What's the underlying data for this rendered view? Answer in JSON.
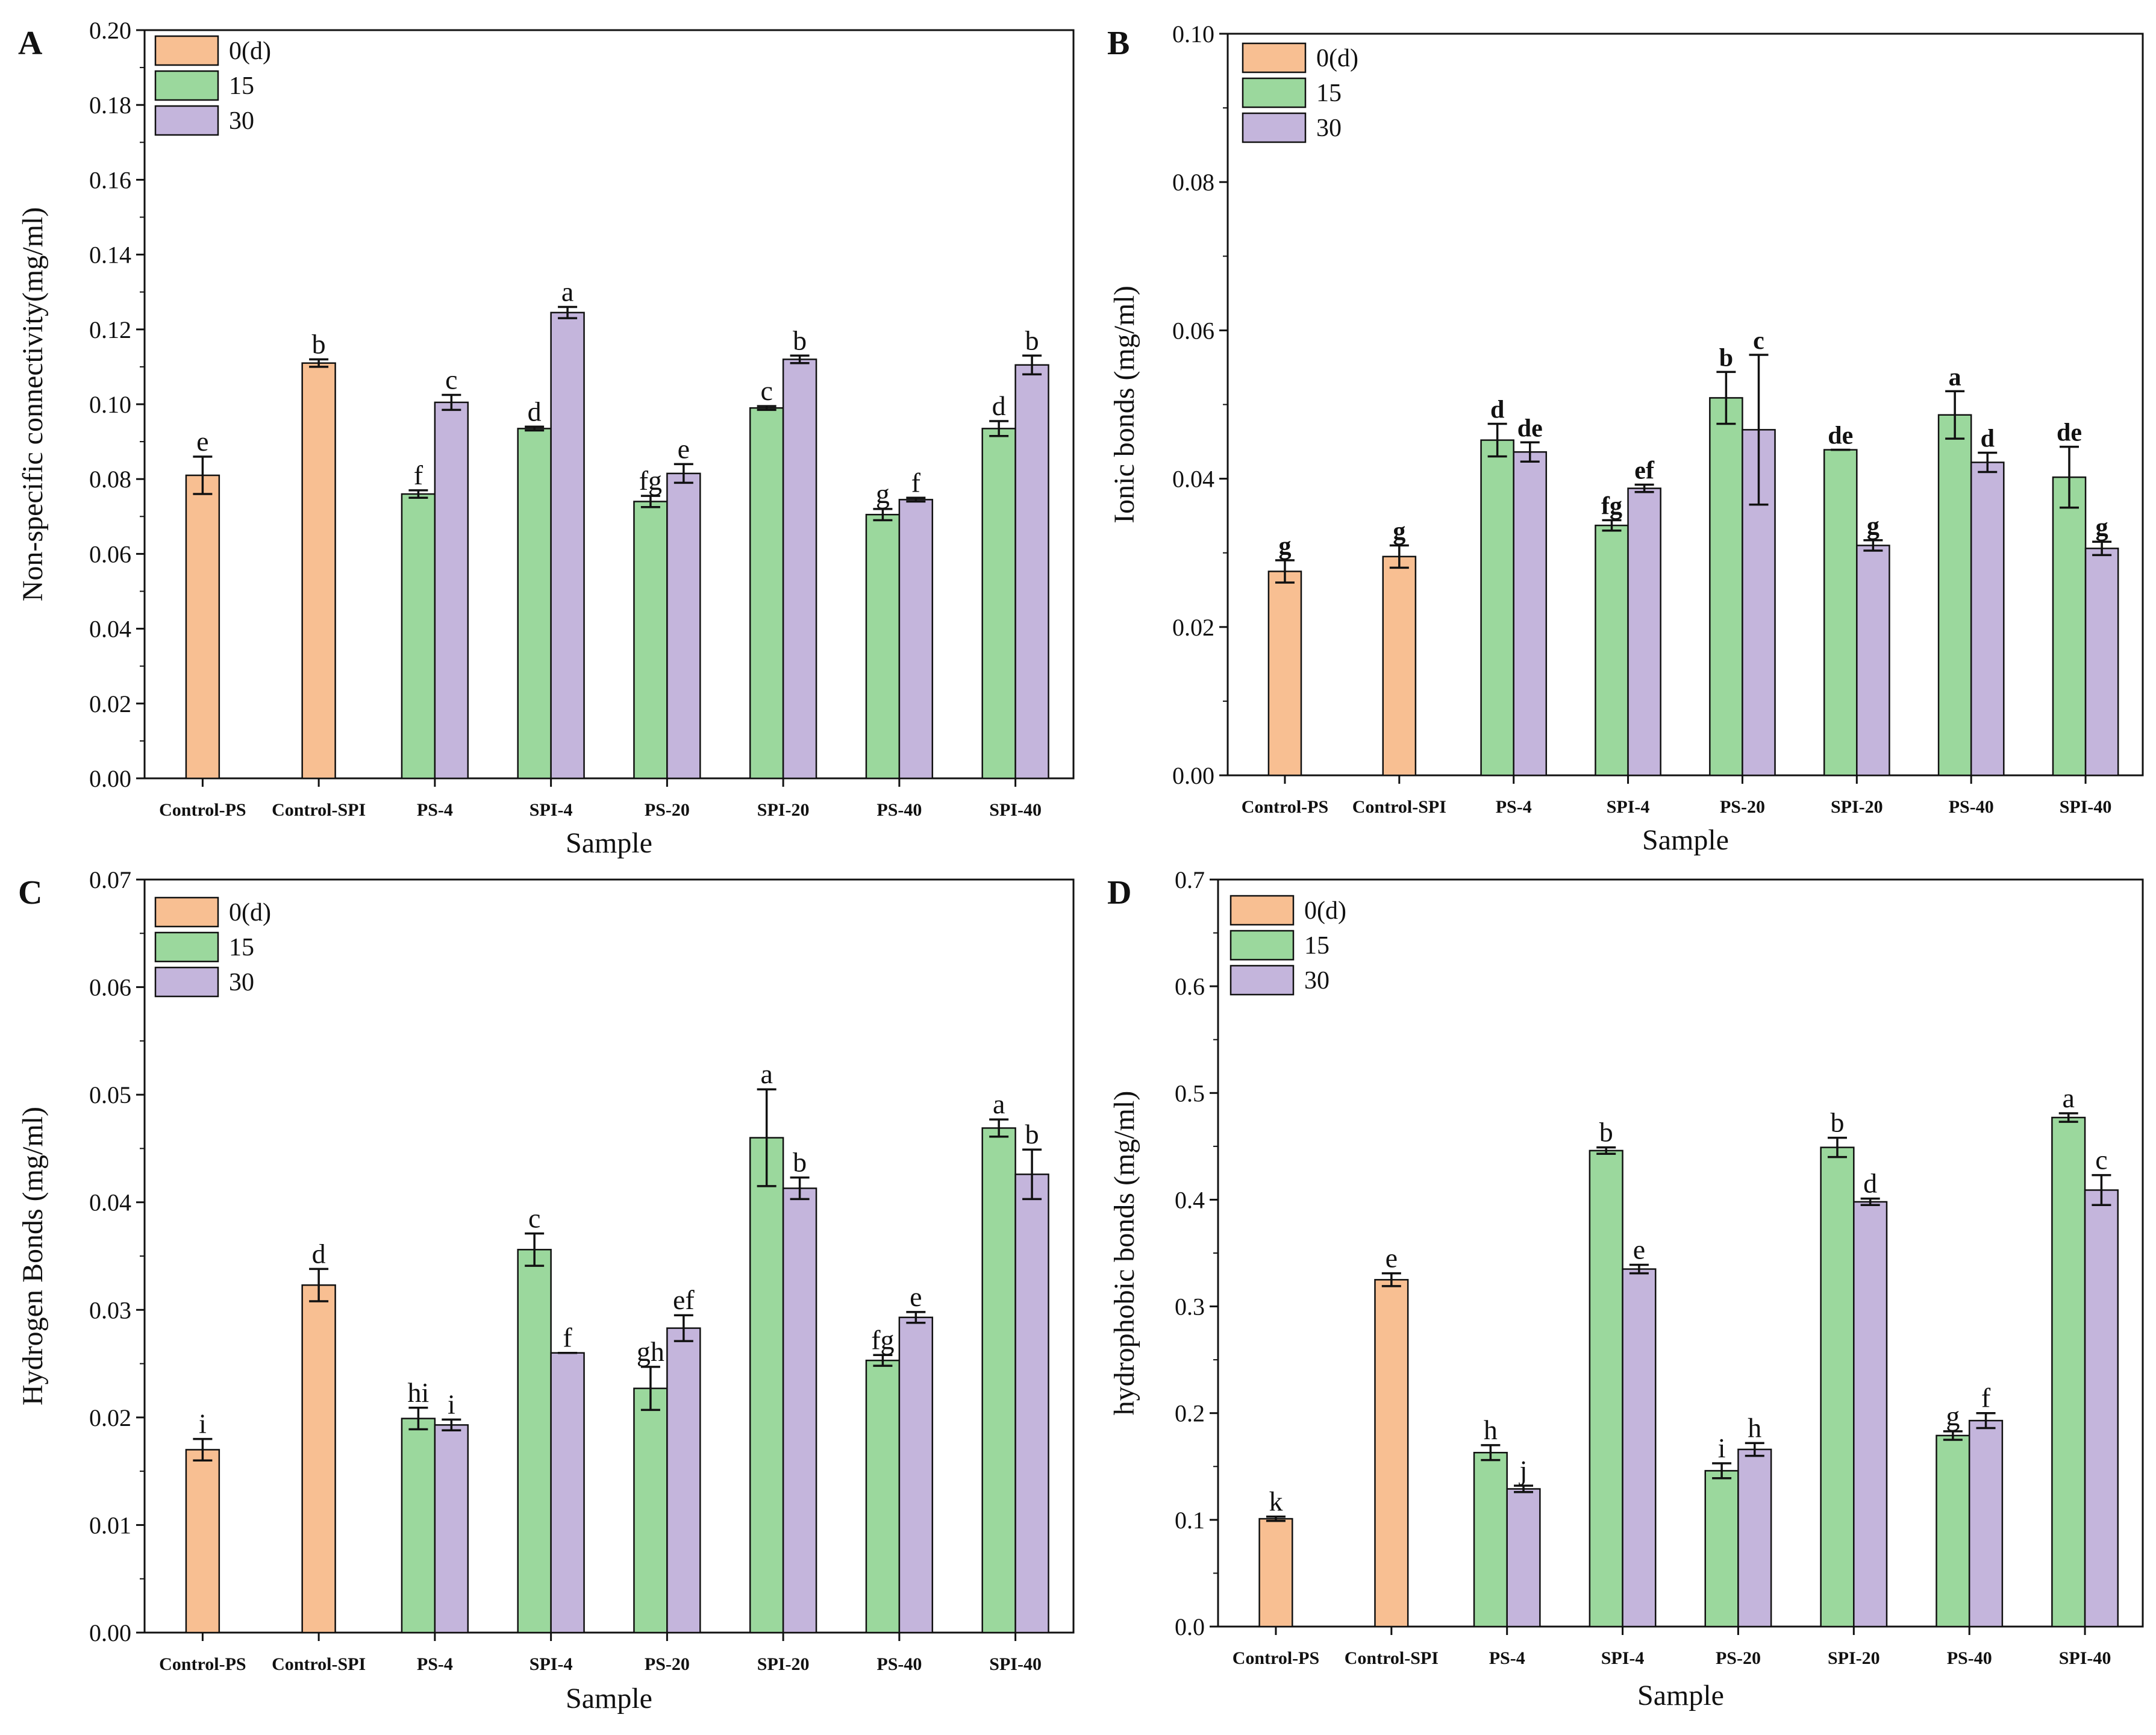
{
  "figure": {
    "colors": {
      "day0": "#F8BF92",
      "day15": "#9BD89D",
      "day30": "#C4B5DC",
      "stroke": "#111111"
    },
    "legend_labels": [
      "0(d)",
      "15",
      "30"
    ]
  },
  "chart_data": [
    {
      "panel": "A",
      "type": "bar",
      "title": "",
      "xlabel": "Sample",
      "ylabel": "Non-specific connectivity(mg/ml)",
      "ylim": [
        0,
        0.2
      ],
      "yticks": [
        "0.00",
        "0.02",
        "0.04",
        "0.06",
        "0.08",
        "0.10",
        "0.12",
        "0.14",
        "0.16",
        "0.18",
        "0.20"
      ],
      "categories": [
        "Control-PS",
        "Control-SPI",
        "PS-4",
        "SPI-4",
        "PS-20",
        "SPI-20",
        "PS-40",
        "SPI-40"
      ],
      "legend_position": "top-left",
      "bold_sig": false,
      "series": [
        {
          "name": "0(d)",
          "values": [
            0.081,
            0.111,
            null,
            null,
            null,
            null,
            null,
            null
          ],
          "errors": [
            0.005,
            0.001,
            null,
            null,
            null,
            null,
            null,
            null
          ],
          "sig": [
            "e",
            "b",
            "",
            "",
            "",
            "",
            "",
            ""
          ]
        },
        {
          "name": "15",
          "values": [
            null,
            null,
            0.076,
            0.0935,
            0.074,
            0.099,
            0.0705,
            0.0935
          ],
          "errors": [
            null,
            null,
            0.001,
            0.0005,
            0.0015,
            0.0005,
            0.0015,
            0.002
          ],
          "sig": [
            "",
            "",
            "f",
            "d",
            "fg",
            "c",
            "g",
            "d"
          ]
        },
        {
          "name": "30",
          "values": [
            null,
            null,
            0.1005,
            0.1245,
            0.0815,
            0.112,
            0.0745,
            0.1105
          ],
          "errors": [
            null,
            null,
            0.002,
            0.0015,
            0.0025,
            0.001,
            0.0005,
            0.0025
          ],
          "sig": [
            "",
            "",
            "c",
            "a",
            "e",
            "b",
            "f",
            "b"
          ]
        }
      ]
    },
    {
      "panel": "B",
      "type": "bar",
      "title": "",
      "xlabel": "Sample",
      "ylabel": "Ionic bonds (mg/ml)",
      "ylim": [
        0,
        0.1
      ],
      "yticks": [
        "0.00",
        "0.02",
        "0.04",
        "0.06",
        "0.08",
        "0.10"
      ],
      "categories": [
        "Control-PS",
        "Control-SPI",
        "PS-4",
        "SPI-4",
        "PS-20",
        "SPI-20",
        "PS-40",
        "SPI-40"
      ],
      "legend_position": "top-left",
      "bold_sig": true,
      "series": [
        {
          "name": "0(d)",
          "values": [
            0.0275,
            0.0295,
            null,
            null,
            null,
            null,
            null,
            null
          ],
          "errors": [
            0.0015,
            0.0015,
            null,
            null,
            null,
            null,
            null,
            null
          ],
          "sig": [
            "g",
            "g",
            "",
            "",
            "",
            "",
            "",
            ""
          ]
        },
        {
          "name": "15",
          "values": [
            null,
            null,
            0.0452,
            0.0337,
            0.0509,
            0.0439,
            0.0486,
            0.0402
          ],
          "errors": [
            null,
            null,
            0.0022,
            0.0007,
            0.0035,
            0.0,
            0.0032,
            0.0041
          ],
          "sig": [
            "",
            "",
            "d",
            "fg",
            "b",
            "de",
            "a",
            "de"
          ]
        },
        {
          "name": "30",
          "values": [
            null,
            null,
            0.0436,
            0.0387,
            0.0466,
            0.031,
            0.0422,
            0.0306
          ],
          "errors": [
            null,
            null,
            0.0013,
            0.0005,
            0.0101,
            0.0007,
            0.0013,
            0.0009
          ],
          "sig": [
            "",
            "",
            "de",
            "ef",
            "c",
            "g",
            "d",
            "g"
          ]
        }
      ]
    },
    {
      "panel": "C",
      "type": "bar",
      "title": "",
      "xlabel": "Sample",
      "ylabel": "Hydrogen Bonds (mg/ml)",
      "ylim": [
        0,
        0.07
      ],
      "yticks": [
        "0.00",
        "0.01",
        "0.02",
        "0.03",
        "0.04",
        "0.05",
        "0.06",
        "0.07"
      ],
      "categories": [
        "Control-PS",
        "Control-SPI",
        "PS-4",
        "SPI-4",
        "PS-20",
        "SPI-20",
        "PS-40",
        "SPI-40"
      ],
      "legend_position": "top-left",
      "bold_sig": false,
      "series": [
        {
          "name": "0(d)",
          "values": [
            0.017,
            0.0323,
            null,
            null,
            null,
            null,
            null,
            null
          ],
          "errors": [
            0.001,
            0.0015,
            null,
            null,
            null,
            null,
            null,
            null
          ],
          "sig": [
            "i",
            "d",
            "",
            "",
            "",
            "",
            "",
            ""
          ]
        },
        {
          "name": "15",
          "values": [
            null,
            null,
            0.0199,
            0.0356,
            0.0227,
            0.046,
            0.0253,
            0.0469
          ],
          "errors": [
            null,
            null,
            0.001,
            0.0015,
            0.002,
            0.0045,
            0.0005,
            0.0008
          ],
          "sig": [
            "",
            "",
            "hi",
            "c",
            "gh",
            "a",
            "fg",
            "a"
          ]
        },
        {
          "name": "30",
          "values": [
            null,
            null,
            0.0193,
            0.026,
            0.0283,
            0.0413,
            0.0293,
            0.0426
          ],
          "errors": [
            null,
            null,
            0.0005,
            0.0,
            0.0012,
            0.001,
            0.0005,
            0.0023
          ],
          "sig": [
            "",
            "",
            "i",
            "f",
            "ef",
            "b",
            "e",
            "b"
          ]
        }
      ]
    },
    {
      "panel": "D",
      "type": "bar",
      "title": "",
      "xlabel": "Sample",
      "ylabel": "hydrophobic bonds (mg/ml)",
      "ylim": [
        0,
        0.7
      ],
      "yticks": [
        "0.0",
        "0.1",
        "0.2",
        "0.3",
        "0.4",
        "0.5",
        "0.6",
        "0.7"
      ],
      "categories": [
        "Control-PS",
        "Control-SPI",
        "PS-4",
        "SPI-4",
        "PS-20",
        "SPI-20",
        "PS-40",
        "SPI-40"
      ],
      "legend_position": "top-left",
      "bold_sig": false,
      "series": [
        {
          "name": "0(d)",
          "values": [
            0.101,
            0.325,
            null,
            null,
            null,
            null,
            null,
            null
          ],
          "errors": [
            0.002,
            0.006,
            null,
            null,
            null,
            null,
            null,
            null
          ],
          "sig": [
            "k",
            "e",
            "",
            "",
            "",
            "",
            "",
            ""
          ]
        },
        {
          "name": "15",
          "values": [
            null,
            null,
            0.163,
            0.446,
            0.146,
            0.449,
            0.179,
            0.477
          ],
          "errors": [
            null,
            null,
            0.007,
            0.003,
            0.007,
            0.009,
            0.004,
            0.004
          ],
          "sig": [
            "",
            "",
            "h",
            "b",
            "i",
            "b",
            "g",
            "a"
          ]
        },
        {
          "name": "30",
          "values": [
            null,
            null,
            0.129,
            0.335,
            0.166,
            0.398,
            0.193,
            0.409
          ],
          "errors": [
            null,
            null,
            0.003,
            0.004,
            0.006,
            0.003,
            0.007,
            0.014
          ],
          "sig": [
            "",
            "",
            "j",
            "e",
            "h",
            "d",
            "f",
            "c"
          ]
        }
      ]
    }
  ]
}
